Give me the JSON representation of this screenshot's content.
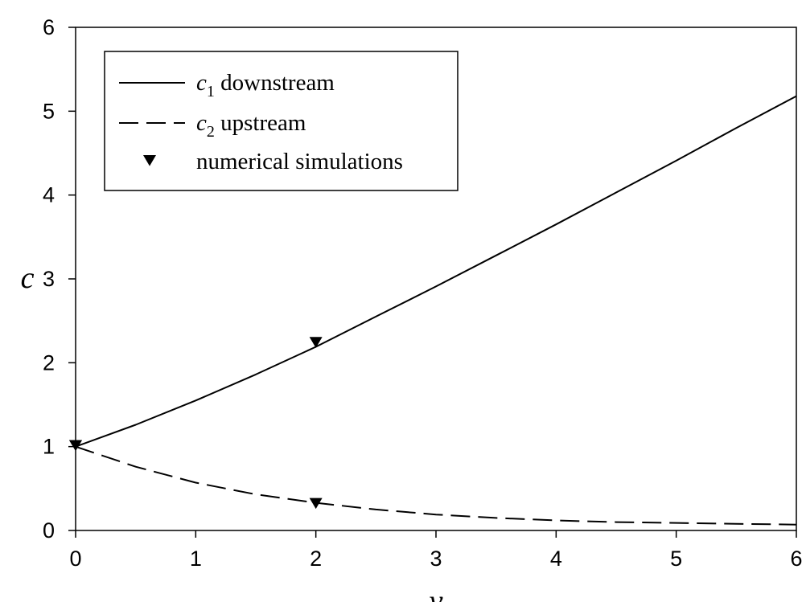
{
  "chart_data": {
    "type": "line",
    "title": "",
    "xlabel": "v",
    "ylabel": "c",
    "xlim": [
      0,
      6
    ],
    "ylim": [
      0,
      6
    ],
    "xticks": [
      "0",
      "1",
      "2",
      "3",
      "4",
      "5",
      "6"
    ],
    "yticks": [
      "0",
      "1",
      "2",
      "3",
      "4",
      "5",
      "6"
    ],
    "grid": false,
    "legend_position": "top-left",
    "series": [
      {
        "name": "c1 downstream",
        "name_var": "c",
        "name_sub": "1",
        "name_rest": " downstream",
        "style": "solid",
        "color": "#000000",
        "x": [
          0,
          0.5,
          1,
          1.5,
          2,
          2.5,
          3,
          3.5,
          4,
          4.5,
          5,
          5.5,
          6
        ],
        "y": [
          1.0,
          1.26,
          1.55,
          1.86,
          2.19,
          2.55,
          2.91,
          3.28,
          3.65,
          4.03,
          4.41,
          4.8,
          5.18
        ]
      },
      {
        "name": "c2 upstream",
        "name_var": "c",
        "name_sub": "2",
        "name_rest": " upstream",
        "style": "dashed",
        "color": "#000000",
        "x": [
          0,
          0.5,
          1,
          1.5,
          2,
          2.5,
          3,
          3.5,
          4,
          4.5,
          5,
          5.5,
          6
        ],
        "y": [
          1.0,
          0.76,
          0.57,
          0.43,
          0.33,
          0.25,
          0.19,
          0.15,
          0.12,
          0.1,
          0.09,
          0.08,
          0.07
        ]
      },
      {
        "name": "numerical simulations",
        "style": "marker",
        "marker": "down-triangle",
        "color": "#000000",
        "x": [
          0,
          0,
          2,
          2
        ],
        "y": [
          1.02,
          1.02,
          2.25,
          0.33
        ]
      }
    ]
  }
}
